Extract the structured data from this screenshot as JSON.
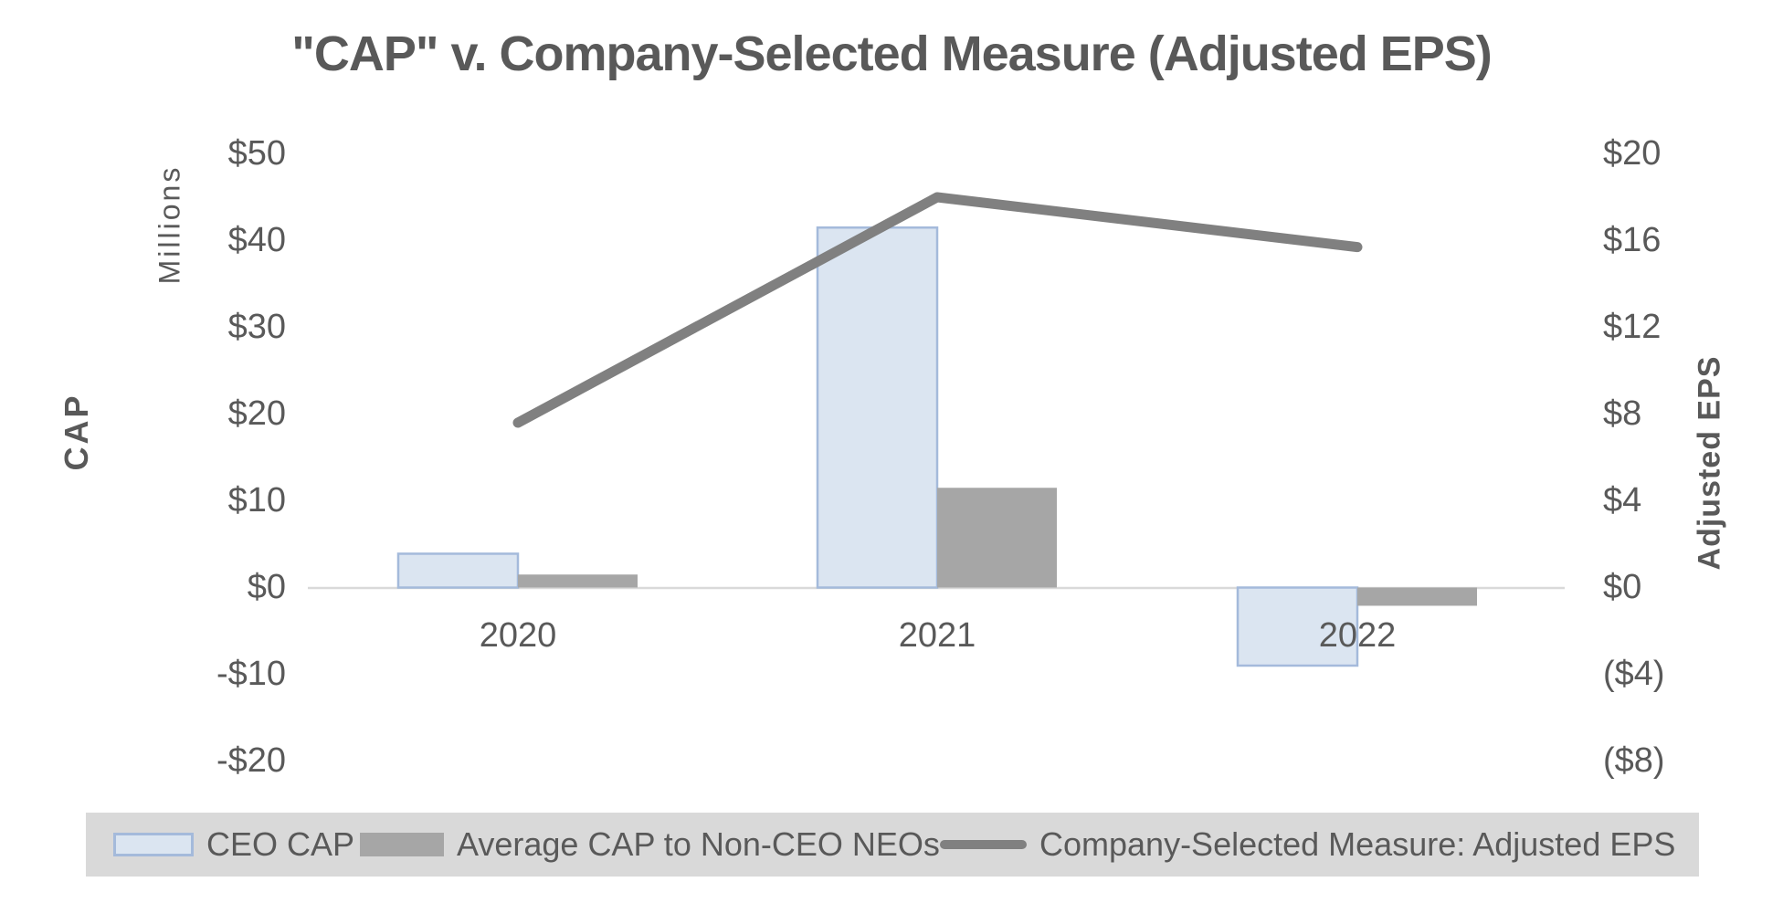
{
  "title": "\"CAP\" v. Company-Selected Measure (Adjusted EPS)",
  "left_axis": {
    "title": "CAP",
    "unit_label": "Millions",
    "ticks": [
      "$50",
      "$40",
      "$30",
      "$20",
      "$10",
      "$0",
      "-$10",
      "-$20"
    ]
  },
  "right_axis": {
    "title": "Adjusted EPS",
    "ticks": [
      "$20",
      "$16",
      "$12",
      "$8",
      "$4",
      "$0",
      "($4)",
      "($8)"
    ]
  },
  "x_axis": {
    "categories": [
      "2020",
      "2021",
      "2022"
    ]
  },
  "legend": {
    "items": [
      {
        "label": "CEO CAP",
        "swatch": "blue-bar-swatch"
      },
      {
        "label": "Average CAP to Non-CEO NEOs",
        "swatch": "gray-bar-swatch"
      },
      {
        "label": "Company-Selected Measure: Adjusted EPS",
        "swatch": "line-swatch"
      }
    ]
  },
  "colors": {
    "ceo_bar_fill": "#dbe5f1",
    "ceo_bar_border": "#a4badb",
    "neo_bar_fill": "#a6a6a6",
    "eps_line": "#808080",
    "text": "#595959",
    "axis_line": "#d9d9d9",
    "legend_bg": "#d9d9d9"
  },
  "chart_data": {
    "type": "combo (clustered bar + line, dual axis)",
    "title": "\"CAP\" v. Company-Selected Measure (Adjusted EPS)",
    "categories": [
      "2020",
      "2021",
      "2022"
    ],
    "series": [
      {
        "name": "CEO CAP",
        "type": "bar",
        "axis": "left",
        "values_millions": [
          3.9,
          41.5,
          -9.0
        ]
      },
      {
        "name": "Average CAP to Non-CEO NEOs",
        "type": "bar",
        "axis": "left",
        "values_millions": [
          1.5,
          11.5,
          -2.1
        ]
      },
      {
        "name": "Company-Selected Measure: Adjusted EPS",
        "type": "line",
        "axis": "right",
        "values_eps": [
          7.6,
          18.0,
          15.7
        ]
      }
    ],
    "left_axis": {
      "label": "CAP",
      "units": "Millions",
      "range": [
        -20,
        50
      ],
      "tick_step": 10,
      "format": "dollar"
    },
    "right_axis": {
      "label": "Adjusted EPS",
      "range": [
        -8,
        20
      ],
      "tick_step": 4,
      "format": "dollar, negatives in parentheses"
    },
    "legend_position": "bottom",
    "grid": false
  }
}
